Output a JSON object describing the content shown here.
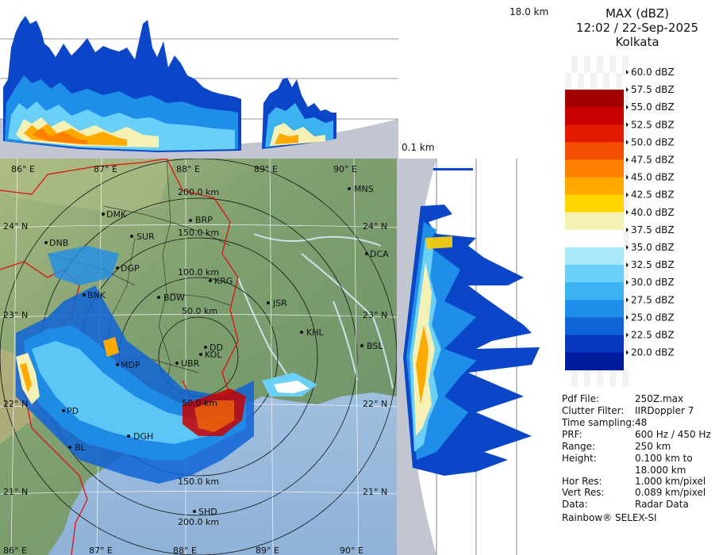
{
  "header": {
    "product": "MAX (dBZ)",
    "datetime": "12:02 / 22-Sep-2025",
    "station": "Kolkata"
  },
  "top_height_label": "18.0 km",
  "bottom_height_label": "0.1 km",
  "colorscale": [
    {
      "label": "60.0 dBZ",
      "color": null
    },
    {
      "label": "57.5 dBZ",
      "color": "#a00000"
    },
    {
      "label": "55.0 dBZ",
      "color": "#c80000"
    },
    {
      "label": "52.5 dBZ",
      "color": "#e21a00"
    },
    {
      "label": "50.0 dBZ",
      "color": "#f25000"
    },
    {
      "label": "47.5 dBZ",
      "color": "#ff8000"
    },
    {
      "label": "45.0 dBZ",
      "color": "#ffaa00"
    },
    {
      "label": "42.5 dBZ",
      "color": "#ffd400"
    },
    {
      "label": "40.0 dBZ",
      "color": "#f5f0b4"
    },
    {
      "label": "37.5 dBZ",
      "color": "#ffffff"
    },
    {
      "label": "35.0 dBZ",
      "color": "#a8e8f8"
    },
    {
      "label": "32.5 dBZ",
      "color": "#6ad0f8"
    },
    {
      "label": "30.0 dBZ",
      "color": "#3cb2f0"
    },
    {
      "label": "27.5 dBZ",
      "color": "#1e8ee8"
    },
    {
      "label": "25.0 dBZ",
      "color": "#0f64d8"
    },
    {
      "label": "22.5 dBZ",
      "color": "#0838c0"
    },
    {
      "label": "20.0 dBZ",
      "color": "#001a9c"
    }
  ],
  "info": [
    {
      "key": "Pdf File:",
      "value": "250Z.max"
    },
    {
      "key": "Clutter Filter:",
      "value": "IIRDoppler 7"
    },
    {
      "key": "Time sampling:",
      "value": "48"
    },
    {
      "key": "PRF:",
      "value": "600 Hz / 450 Hz"
    },
    {
      "key": "Range:",
      "value": "250 km"
    },
    {
      "key": "Height:",
      "value": "0.100 km to"
    },
    {
      "key": "",
      "value": "18.000 km"
    },
    {
      "key": "Hor Res:",
      "value": "1.000 km/pixel"
    },
    {
      "key": "Vert Res:",
      "value": "0.089 km/pixel"
    },
    {
      "key": "Data:",
      "value": "Radar Data"
    }
  ],
  "footer": "Rainbow® SELEX-SI",
  "map": {
    "lon_top": [
      "86° E",
      "87° E",
      "88° E",
      "89° E",
      "90° E"
    ],
    "lon_bottom": [
      "86° E",
      "87° E",
      "88° E",
      "89° E",
      "90° E"
    ],
    "lat_labels": [
      "24° N",
      "23° N",
      "22° N",
      "21° N"
    ],
    "range_labels": [
      "200.0 km",
      "150.0 km",
      "100.0 km",
      "50.0 km",
      "50.0 km",
      "150.0 km",
      "200.0 km"
    ],
    "cities": [
      "DMK",
      "BRP",
      "MNS",
      "DNB",
      "SUR",
      "DCA",
      "DGP",
      "KRG",
      "BNK",
      "BDW",
      "JSR",
      "KHL",
      "BSL",
      "DD",
      "KOL",
      "UBR",
      "MDP",
      "PD",
      "DGH",
      "BL",
      "SHD"
    ]
  }
}
